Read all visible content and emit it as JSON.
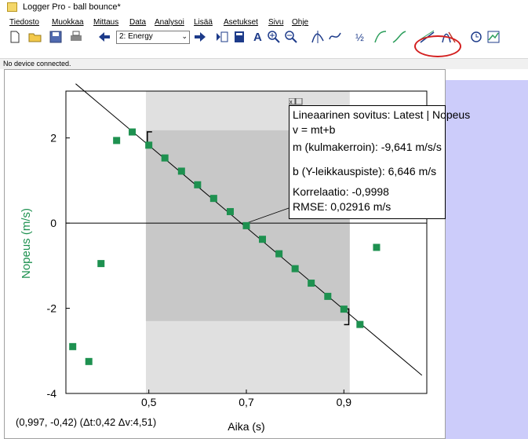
{
  "window": {
    "title": "Logger Pro - ball bounce*"
  },
  "menu": [
    "Tiedosto",
    "Muokkaa",
    "Mittaus",
    "Data",
    "Analysoi",
    "Lisää",
    "Asetukset",
    "Sivu",
    "Ohje"
  ],
  "toolbar": {
    "page_select": "2: Energy",
    "buttons": [
      "new-file-icon",
      "open-folder-icon",
      "save-disk-icon",
      "print-icon",
      "back-arrow-icon",
      "forward-arrow-icon",
      "data-browser-icon",
      "calculator-icon",
      "autoscale-icon",
      "zoom-in-icon",
      "zoom-out-icon",
      "examine-icon",
      "tangent-icon",
      "integral-icon",
      "stats-icon",
      "curve-fit-icon",
      "linear-fit-icon",
      "model-icon",
      "replay-icon",
      "graph-options-icon"
    ]
  },
  "status": {
    "text": "No device connected."
  },
  "chart_data": {
    "type": "scatter",
    "xlabel": "Aika (s)",
    "ylabel": "Nopeus (m/s)",
    "xlim": [
      0.33,
      1.07
    ],
    "ylim": [
      -4,
      3.1
    ],
    "x_ticks": [
      "0,5",
      "0,7",
      "0,9"
    ],
    "y_ticks": [
      "2",
      "0",
      "-2",
      "-4"
    ],
    "grid": false,
    "selection_x": [
      0.494,
      0.912
    ],
    "selection_y": [
      -2.3,
      2.18
    ],
    "bracket_points": [
      [
        0.497,
        1.96
      ],
      [
        0.91,
        -2.2
      ]
    ],
    "points": [
      [
        0.344,
        -2.9
      ],
      [
        0.377,
        -3.25
      ],
      [
        0.402,
        -0.95
      ],
      [
        0.434,
        1.94
      ],
      [
        0.466,
        2.14
      ],
      [
        0.5,
        1.83
      ],
      [
        0.533,
        1.53
      ],
      [
        0.567,
        1.22
      ],
      [
        0.6,
        0.9
      ],
      [
        0.633,
        0.58
      ],
      [
        0.667,
        0.27
      ],
      [
        0.7,
        -0.06
      ],
      [
        0.733,
        -0.38
      ],
      [
        0.767,
        -0.72
      ],
      [
        0.8,
        -1.07
      ],
      [
        0.833,
        -1.41
      ],
      [
        0.867,
        -1.72
      ],
      [
        0.9,
        -2.02
      ],
      [
        0.933,
        -2.38
      ],
      [
        0.967,
        -0.57
      ]
    ],
    "fit": {
      "m": -9.641,
      "b": 6.646
    },
    "readout": "(0,997, -0,42) (Δt:0,42 Δv:4,51)",
    "info_box": [
      "Lineaarinen sovitus: Latest | Nopeus",
      "v = mt+b",
      "m (kulmakerroin): -9,641 m/s/s",
      "b (Y-leikkauspiste): 6,646 m/s",
      "Korrelaatio: -0,9998",
      "RMSE: 0,02916 m/s"
    ],
    "colors": {
      "points": "#1e9150",
      "ylabel": "#1e9150",
      "selection": "#e0e0e0",
      "fit_region": "#c8c8c8"
    }
  }
}
